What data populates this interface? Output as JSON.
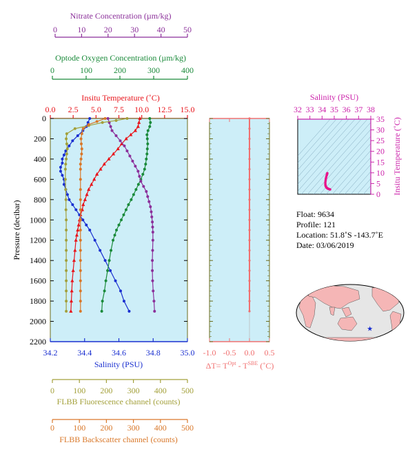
{
  "colors": {
    "panel_bg": "#cdeef8",
    "nitrate": "#8b2f9a",
    "oxygen": "#1a8a3a",
    "temperature": "#e8141b",
    "salinity": "#1a2fd0",
    "fluorescence": "#a3a03a",
    "backscatter": "#d9782a",
    "dt": "#f07070",
    "ts_axis": "#cc22aa",
    "map_land": "#f5b6b6",
    "map_ocean": "#e6e6e6"
  },
  "chart_data": [
    {
      "type": "line",
      "id": "main-profile",
      "ylabel": "Pressure (decibar)",
      "ylim": [
        2200,
        0
      ],
      "yticks": [
        0,
        200,
        400,
        600,
        800,
        1000,
        1200,
        1400,
        1600,
        1800,
        2000,
        2200
      ],
      "axes": {
        "nitrate": {
          "label": "Nitrate Concentration (µm/kg)",
          "range": [
            0,
            50
          ],
          "ticks": [
            0,
            10,
            20,
            30,
            40,
            50
          ]
        },
        "oxygen": {
          "label": "Optode Oxygen Concentration (µm/kg)",
          "range": [
            0,
            400
          ],
          "ticks": [
            0,
            100,
            200,
            300,
            400
          ]
        },
        "temperature": {
          "label": "Insitu Temperature (˚C)",
          "range": [
            0,
            15
          ],
          "ticks": [
            "0.0",
            "2.5",
            "5.0",
            "7.5",
            "10.0",
            "12.5",
            "15.0"
          ]
        },
        "salinity": {
          "label": "Salinity (PSU)",
          "range": [
            34.2,
            35.0
          ],
          "ticks": [
            "34.2",
            "34.4",
            "34.6",
            "34.8",
            "35.0"
          ]
        },
        "fluorescence": {
          "label": "FLBB Fluorescence channel (counts)",
          "range": [
            0,
            500
          ],
          "ticks": [
            0,
            100,
            200,
            300,
            400,
            500
          ]
        },
        "backscatter": {
          "label": "FLBB Backscatter channel (counts)",
          "range": [
            0,
            500
          ],
          "ticks": [
            0,
            100,
            200,
            300,
            400,
            500
          ]
        }
      },
      "series": [
        {
          "key": "temperature",
          "marker": "triangle",
          "points": [
            [
              9.8,
              0
            ],
            [
              9.7,
              40
            ],
            [
              9.6,
              80
            ],
            [
              9.3,
              120
            ],
            [
              8.8,
              160
            ],
            [
              8.3,
              200
            ],
            [
              7.8,
              250
            ],
            [
              7.4,
              300
            ],
            [
              6.9,
              350
            ],
            [
              6.4,
              400
            ],
            [
              5.9,
              450
            ],
            [
              5.5,
              500
            ],
            [
              5.1,
              550
            ],
            [
              4.8,
              600
            ],
            [
              4.5,
              650
            ],
            [
              4.2,
              700
            ],
            [
              4.0,
              750
            ],
            [
              3.8,
              800
            ],
            [
              3.6,
              850
            ],
            [
              3.5,
              900
            ],
            [
              3.3,
              950
            ],
            [
              3.2,
              1000
            ],
            [
              3.1,
              1050
            ],
            [
              3.0,
              1100
            ],
            [
              2.9,
              1150
            ],
            [
              2.8,
              1200
            ],
            [
              2.7,
              1300
            ],
            [
              2.6,
              1400
            ],
            [
              2.5,
              1500
            ],
            [
              2.4,
              1600
            ],
            [
              2.35,
              1700
            ],
            [
              2.3,
              1800
            ],
            [
              2.25,
              1900
            ]
          ]
        },
        {
          "key": "salinity",
          "marker": "dot",
          "points": [
            [
              34.43,
              0
            ],
            [
              34.42,
              40
            ],
            [
              34.41,
              80
            ],
            [
              34.39,
              120
            ],
            [
              34.36,
              170
            ],
            [
              34.33,
              220
            ],
            [
              34.31,
              270
            ],
            [
              34.29,
              320
            ],
            [
              34.28,
              360
            ],
            [
              34.27,
              400
            ],
            [
              34.27,
              440
            ],
            [
              34.26,
              480
            ],
            [
              34.26,
              520
            ],
            [
              34.27,
              560
            ],
            [
              34.28,
              600
            ],
            [
              34.28,
              650
            ],
            [
              34.29,
              700
            ],
            [
              34.3,
              750
            ],
            [
              34.31,
              800
            ],
            [
              34.33,
              850
            ],
            [
              34.35,
              900
            ],
            [
              34.37,
              950
            ],
            [
              34.39,
              1000
            ],
            [
              34.41,
              1050
            ],
            [
              34.43,
              1100
            ],
            [
              34.46,
              1200
            ],
            [
              34.49,
              1300
            ],
            [
              34.52,
              1400
            ],
            [
              34.55,
              1500
            ],
            [
              34.58,
              1600
            ],
            [
              34.61,
              1700
            ],
            [
              34.63,
              1800
            ],
            [
              34.66,
              1900
            ]
          ]
        },
        {
          "key": "oxygen",
          "marker": "dot",
          "points": [
            [
              290,
              0
            ],
            [
              292,
              40
            ],
            [
              290,
              80
            ],
            [
              285,
              120
            ],
            [
              282,
              160
            ],
            [
              283,
              200
            ],
            [
              284,
              250
            ],
            [
              283,
              300
            ],
            [
              282,
              350
            ],
            [
              280,
              400
            ],
            [
              278,
              450
            ],
            [
              275,
              500
            ],
            [
              270,
              550
            ],
            [
              264,
              600
            ],
            [
              257,
              650
            ],
            [
              250,
              700
            ],
            [
              243,
              750
            ],
            [
              236,
              800
            ],
            [
              228,
              850
            ],
            [
              221,
              900
            ],
            [
              214,
              950
            ],
            [
              207,
              1000
            ],
            [
              200,
              1050
            ],
            [
              193,
              1100
            ],
            [
              188,
              1150
            ],
            [
              183,
              1200
            ],
            [
              177,
              1300
            ],
            [
              172,
              1400
            ],
            [
              167,
              1500
            ],
            [
              162,
              1600
            ],
            [
              158,
              1700
            ],
            [
              152,
              1800
            ],
            [
              150,
              1900
            ]
          ]
        },
        {
          "key": "nitrate",
          "marker": "dot",
          "points": [
            [
              21,
              0
            ],
            [
              21.5,
              40
            ],
            [
              22,
              80
            ],
            [
              22.5,
              120
            ],
            [
              24,
              170
            ],
            [
              25.5,
              220
            ],
            [
              27,
              270
            ],
            [
              28,
              320
            ],
            [
              29,
              370
            ],
            [
              30,
              420
            ],
            [
              31,
              470
            ],
            [
              32,
              520
            ],
            [
              32.5,
              570
            ],
            [
              33,
              620
            ],
            [
              34,
              670
            ],
            [
              35,
              720
            ],
            [
              35.5,
              770
            ],
            [
              36,
              820
            ],
            [
              36.5,
              870
            ],
            [
              36.8,
              920
            ],
            [
              37,
              970
            ],
            [
              37.2,
              1020
            ],
            [
              37.3,
              1070
            ],
            [
              37.4,
              1120
            ],
            [
              37.4,
              1200
            ],
            [
              37.3,
              1300
            ],
            [
              37.2,
              1400
            ],
            [
              37.2,
              1500
            ],
            [
              37.3,
              1600
            ],
            [
              37.5,
              1700
            ],
            [
              37.8,
              1800
            ],
            [
              38,
              1900
            ]
          ]
        },
        {
          "key": "fluorescence",
          "marker": "dot",
          "points": [
            [
              280,
              0
            ],
            [
              240,
              20
            ],
            [
              190,
              40
            ],
            [
              140,
              70
            ],
            [
              90,
              100
            ],
            [
              60,
              150
            ],
            [
              58,
              200
            ],
            [
              60,
              250
            ],
            [
              62,
              300
            ],
            [
              60,
              350
            ],
            [
              58,
              400
            ],
            [
              56,
              450
            ],
            [
              55,
              500
            ],
            [
              55,
              600
            ],
            [
              56,
              700
            ],
            [
              57,
              800
            ],
            [
              57,
              900
            ],
            [
              58,
              1000
            ],
            [
              58,
              1100
            ],
            [
              58,
              1200
            ],
            [
              58,
              1300
            ],
            [
              58,
              1400
            ],
            [
              58,
              1500
            ],
            [
              58,
              1600
            ],
            [
              58,
              1700
            ],
            [
              58,
              1800
            ],
            [
              58,
              1900
            ]
          ]
        },
        {
          "key": "backscatter",
          "marker": "dot",
          "points": [
            [
              200,
              0
            ],
            [
              170,
              30
            ],
            [
              140,
              60
            ],
            [
              120,
              100
            ],
            [
              115,
              150
            ],
            [
              112,
              200
            ],
            [
              113,
              250
            ],
            [
              115,
              300
            ],
            [
              114,
              350
            ],
            [
              112,
              400
            ],
            [
              110,
              450
            ],
            [
              110,
              500
            ],
            [
              110,
              600
            ],
            [
              110,
              700
            ],
            [
              110,
              800
            ],
            [
              110,
              900
            ],
            [
              110,
              1000
            ],
            [
              110,
              1100
            ],
            [
              110,
              1200
            ],
            [
              110,
              1300
            ],
            [
              110,
              1400
            ],
            [
              110,
              1500
            ],
            [
              110,
              1600
            ],
            [
              110,
              1700
            ],
            [
              110,
              1800
            ],
            [
              110,
              1900
            ]
          ]
        }
      ]
    },
    {
      "type": "line",
      "id": "delta-t",
      "xlabel": "ΔT= T",
      "xlabel_sup1": "Opt",
      "xlabel_mid": " - T",
      "xlabel_sup2": "SBE",
      "xlabel_end": " (˚C)",
      "xlim": [
        -1.0,
        0.5
      ],
      "xticks": [
        "-1.0",
        "-0.5",
        "0.0",
        "0.5"
      ],
      "ylim": [
        2200,
        0
      ],
      "points": [
        [
          0.0,
          0
        ],
        [
          0.0,
          100
        ],
        [
          0.0,
          200
        ],
        [
          0.0,
          300
        ],
        [
          0.0,
          400
        ],
        [
          0.0,
          500
        ],
        [
          0.0,
          600
        ],
        [
          0.0,
          700
        ],
        [
          0.0,
          800
        ],
        [
          0.0,
          900
        ],
        [
          0.0,
          1000
        ],
        [
          0.0,
          1100
        ],
        [
          0.0,
          1200
        ],
        [
          0.0,
          1300
        ],
        [
          0.0,
          1400
        ],
        [
          0.0,
          1500
        ],
        [
          0.0,
          1600
        ],
        [
          0.0,
          1700
        ],
        [
          0.0,
          1800
        ],
        [
          0.0,
          1900
        ]
      ]
    },
    {
      "type": "scatter",
      "id": "ts-diagram",
      "xlabel": "Salinity (PSU)",
      "ylabel": "Insitu Temperature (˚C)",
      "xlim": [
        32,
        38
      ],
      "ylim": [
        0,
        35
      ],
      "xticks": [
        "32",
        "33",
        "34",
        "35",
        "36",
        "37",
        "38"
      ],
      "yticks": [
        "0",
        "5",
        "10",
        "15",
        "20",
        "25",
        "30",
        "35"
      ],
      "points": [
        [
          34.43,
          9.8
        ],
        [
          34.41,
          9.3
        ],
        [
          34.38,
          8.8
        ],
        [
          34.34,
          8.0
        ],
        [
          34.31,
          7.2
        ],
        [
          34.29,
          6.4
        ],
        [
          34.27,
          5.6
        ],
        [
          34.27,
          4.8
        ],
        [
          34.28,
          4.2
        ],
        [
          34.3,
          3.8
        ],
        [
          34.33,
          3.4
        ],
        [
          34.37,
          3.1
        ],
        [
          34.41,
          2.9
        ],
        [
          34.46,
          2.7
        ],
        [
          34.52,
          2.5
        ],
        [
          34.58,
          2.4
        ],
        [
          34.63,
          2.3
        ],
        [
          34.66,
          2.25
        ]
      ]
    }
  ],
  "info": {
    "float": "Float:  9634",
    "profile": "Profile:  121",
    "location": "Location:  51.8˚S  -143.7˚E",
    "date": "Date:  03/06/2019"
  },
  "map": {
    "float_position": {
      "lat": -51.8,
      "lon": -143.7
    },
    "marker_symbol": "★"
  }
}
